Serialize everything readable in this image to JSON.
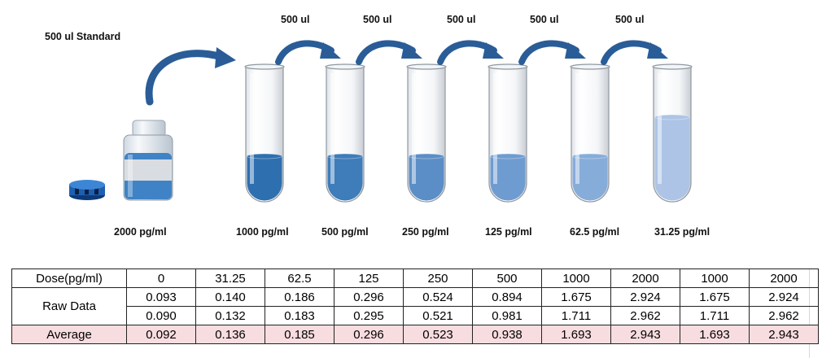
{
  "standard_label": "500 ul Standard",
  "transfer_labels": [
    "500 ul",
    "500 ul",
    "500 ul",
    "500 ul",
    "500 ul"
  ],
  "stock_concentration": "2000 pg/ml",
  "tube_concentrations": [
    "1000 pg/ml",
    "500 pg/ml",
    "250 pg/ml",
    "125 pg/ml",
    "62.5 pg/ml",
    "31.25 pg/ml"
  ],
  "colors": {
    "arrow": "#2a5d97",
    "liquid": [
      "#2e6fb0",
      "#3e7cba",
      "#5b8ec6",
      "#6f9cd0",
      "#86acda",
      "#adc4e6"
    ],
    "table_average_bg": "#f8dde0"
  },
  "table": {
    "dose_header": "Dose(pg/ml)",
    "doses": [
      "0",
      "31.25",
      "62.5",
      "125",
      "250",
      "500",
      "1000",
      "2000",
      "1000",
      "2000"
    ],
    "raw_label": "Raw Data",
    "raw_row1": [
      "0.093",
      "0.140",
      "0.186",
      "0.296",
      "0.524",
      "0.894",
      "1.675",
      "2.924",
      "1.675",
      "2.924"
    ],
    "raw_row2": [
      "0.090",
      "0.132",
      "0.183",
      "0.295",
      "0.521",
      "0.981",
      "1.711",
      "2.962",
      "1.711",
      "2.962"
    ],
    "average_label": "Average",
    "average": [
      "0.092",
      "0.136",
      "0.185",
      "0.296",
      "0.523",
      "0.938",
      "1.693",
      "2.943",
      "1.693",
      "2.943"
    ]
  }
}
